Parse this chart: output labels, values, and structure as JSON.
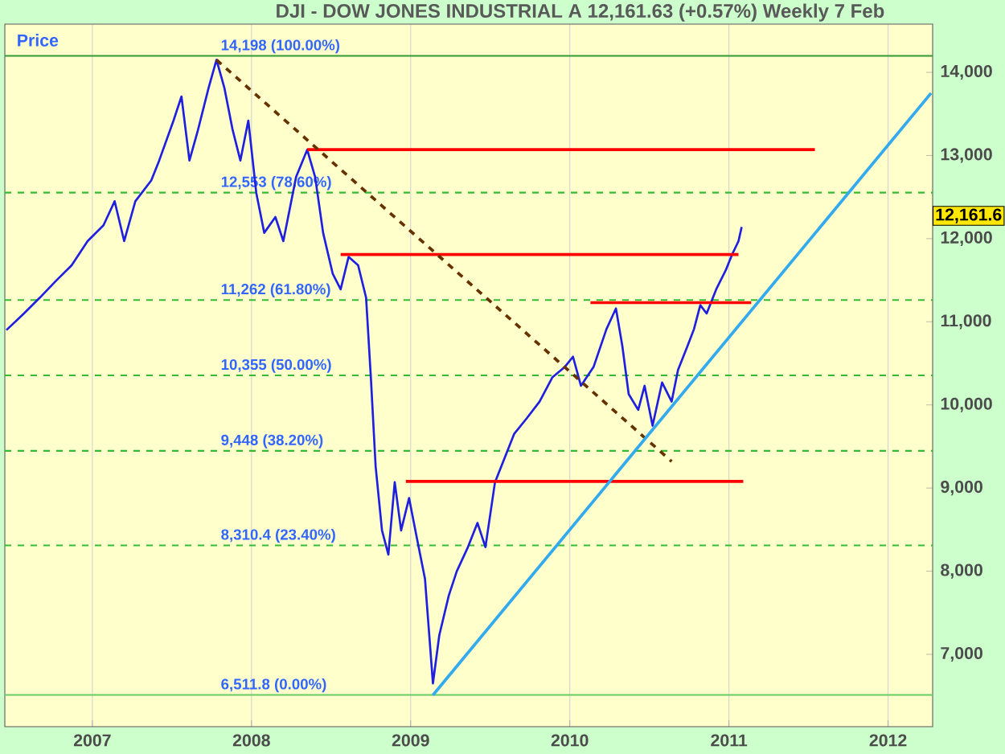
{
  "chart_data": {
    "type": "line",
    "title": "DJI - DOW JONES INDUSTRIAL A    12,161.63 (+0.57%)    Weekly  7 Feb",
    "ylabel": "Price",
    "xlim": [
      2006.45,
      2012.28
    ],
    "ylim": [
      6130,
      14580
    ],
    "xticks": [
      2007,
      2008,
      2009,
      2010,
      2011,
      2012
    ],
    "yticks": [
      {
        "value": 7000,
        "label": "7,000"
      },
      {
        "value": 8000,
        "label": "8,000"
      },
      {
        "value": 9000,
        "label": "9,000"
      },
      {
        "value": 10000,
        "label": "10,000"
      },
      {
        "value": 11000,
        "label": "11,000"
      },
      {
        "value": 12000,
        "label": "12,000"
      },
      {
        "value": 13000,
        "label": "13,000"
      },
      {
        "value": 14000,
        "label": "14,000"
      }
    ],
    "grid": "x",
    "marker": "none",
    "series": [
      {
        "color": "#1f1fe0",
        "line_style": "solid",
        "x": [
          2006.46,
          2006.57,
          2006.67,
          2006.77,
          2006.87,
          2006.97,
          2007.07,
          2007.14,
          2007.2,
          2007.27,
          2007.37,
          2007.42,
          2007.51,
          2007.56,
          2007.61,
          2007.66,
          2007.73,
          2007.78,
          2007.83,
          2007.88,
          2007.93,
          2007.98,
          2008.03,
          2008.08,
          2008.15,
          2008.2,
          2008.28,
          2008.35,
          2008.4,
          2008.45,
          2008.51,
          2008.56,
          2008.61,
          2008.67,
          2008.72,
          2008.75,
          2008.78,
          2008.82,
          2008.86,
          2008.9,
          2008.94,
          2008.99,
          2009.04,
          2009.09,
          2009.14,
          2009.18,
          2009.24,
          2009.29,
          2009.36,
          2009.42,
          2009.47,
          2009.53,
          2009.59,
          2009.65,
          2009.73,
          2009.81,
          2009.89,
          2009.97,
          2010.02,
          2010.07,
          2010.15,
          2010.23,
          2010.29,
          2010.33,
          2010.37,
          2010.43,
          2010.47,
          2010.52,
          2010.58,
          2010.64,
          2010.68,
          2010.74,
          2010.78,
          2010.82,
          2010.86,
          2010.92,
          2010.98,
          2011.02,
          2011.06,
          2011.08
        ],
        "values": [
          10900,
          11100,
          11290,
          11490,
          11680,
          11970,
          12160,
          12450,
          11970,
          12450,
          12700,
          12940,
          13420,
          13710,
          12940,
          13280,
          13810,
          14150,
          13810,
          13320,
          12940,
          13420,
          12550,
          12070,
          12260,
          11970,
          12740,
          13070,
          12740,
          12070,
          11580,
          11390,
          11780,
          11680,
          11290,
          10330,
          9260,
          8490,
          8200,
          9070,
          8490,
          8880,
          8390,
          7910,
          6650,
          7230,
          7710,
          8000,
          8290,
          8580,
          8290,
          9070,
          9360,
          9650,
          9840,
          10040,
          10330,
          10460,
          10580,
          10230,
          10460,
          10910,
          11160,
          10710,
          10130,
          9940,
          10230,
          9750,
          10270,
          10040,
          10420,
          10710,
          10910,
          11200,
          11100,
          11390,
          11620,
          11810,
          11970,
          12140
        ]
      },
      {
        "color": "#ff0000",
        "line_style": "solid",
        "x": [
          2008.35,
          2011.54
        ],
        "values": [
          13070,
          13070
        ]
      },
      {
        "color": "#ff0000",
        "line_style": "solid",
        "x": [
          2008.56,
          2011.06
        ],
        "values": [
          11810,
          11810
        ]
      },
      {
        "color": "#ff0000",
        "line_style": "solid",
        "x": [
          2010.13,
          2011.14
        ],
        "values": [
          11230,
          11230
        ]
      },
      {
        "color": "#ff0000",
        "line_style": "solid",
        "x": [
          2008.97,
          2011.09
        ],
        "values": [
          9080,
          9080
        ]
      },
      {
        "color": "#663300",
        "line_style": "dashed",
        "x": [
          2007.78,
          2010.64
        ],
        "values": [
          14150,
          9320
        ]
      },
      {
        "color": "#33aaee",
        "line_style": "solid",
        "x": [
          2009.14,
          2012.27
        ],
        "values": [
          6510,
          13750
        ]
      }
    ],
    "ref_lines": [
      {
        "axis": "y",
        "value": 14198,
        "label": "14,198 (100.00%)",
        "color": "#339933",
        "line_style": "solid"
      },
      {
        "axis": "y",
        "value": 12553,
        "label": "12,553 (78.60%)",
        "color": "#33bb33",
        "line_style": "dashed"
      },
      {
        "axis": "y",
        "value": 11262,
        "label": "11,262 (61.80%)",
        "color": "#33bb33",
        "line_style": "dashed"
      },
      {
        "axis": "y",
        "value": 10355,
        "label": "10,355 (50.00%)",
        "color": "#33bb33",
        "line_style": "dashed"
      },
      {
        "axis": "y",
        "value": 9448,
        "label": "9,448 (38.20%)",
        "color": "#33bb33",
        "line_style": "dashed"
      },
      {
        "axis": "y",
        "value": 8310.4,
        "label": "8,310.4 (23.40%)",
        "color": "#33bb33",
        "line_style": "dashed"
      },
      {
        "axis": "y",
        "value": 6511.8,
        "label": "6,511.8 (0.00%)",
        "color": "#66cc66",
        "line_style": "solid"
      }
    ],
    "annotations": [
      "12,161.6"
    ]
  }
}
